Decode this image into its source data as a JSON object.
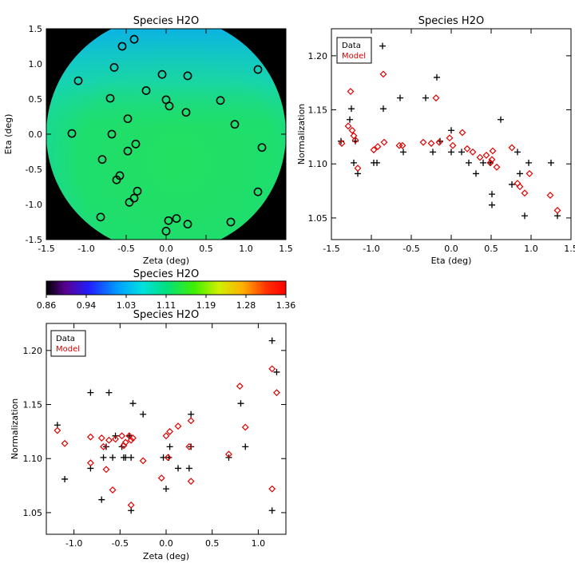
{
  "chart_data": [
    {
      "type": "heatmap",
      "title": "Species H2O",
      "xlabel": "Zeta (deg)",
      "ylabel": "Eta (deg)",
      "xlim": [
        -1.5,
        1.5
      ],
      "ylim": [
        -1.5,
        1.5
      ],
      "xticks": [
        "-1.5",
        "-1.0",
        "-0.5",
        "0.0",
        "0.5",
        "1.0",
        "1.5"
      ],
      "yticks": [
        "-1.5",
        "-1.0",
        "-0.5",
        "0.0",
        "0.5",
        "1.0",
        "1.5"
      ],
      "colors": {
        "outside": "#000000",
        "markers": "#000000"
      },
      "points": [
        {
          "x": -0.4,
          "y": 1.35
        },
        {
          "x": -0.55,
          "y": 1.25
        },
        {
          "x": 1.15,
          "y": 0.92
        },
        {
          "x": -0.65,
          "y": 0.95
        },
        {
          "x": -0.05,
          "y": 0.85
        },
        {
          "x": 0.27,
          "y": 0.83
        },
        {
          "x": -1.1,
          "y": 0.76
        },
        {
          "x": -0.25,
          "y": 0.62
        },
        {
          "x": -0.7,
          "y": 0.51
        },
        {
          "x": 0.0,
          "y": 0.49
        },
        {
          "x": 0.68,
          "y": 0.48
        },
        {
          "x": 0.04,
          "y": 0.4
        },
        {
          "x": 0.25,
          "y": 0.31
        },
        {
          "x": -0.48,
          "y": 0.22
        },
        {
          "x": 0.86,
          "y": 0.14
        },
        {
          "x": -1.18,
          "y": 0.01
        },
        {
          "x": -0.68,
          "y": 0.0
        },
        {
          "x": -0.38,
          "y": -0.14
        },
        {
          "x": 1.2,
          "y": -0.19
        },
        {
          "x": -0.48,
          "y": -0.24
        },
        {
          "x": -0.8,
          "y": -0.36
        },
        {
          "x": -0.58,
          "y": -0.59
        },
        {
          "x": -0.62,
          "y": -0.65
        },
        {
          "x": -0.36,
          "y": -0.81
        },
        {
          "x": 1.15,
          "y": -0.82
        },
        {
          "x": -0.4,
          "y": -0.91
        },
        {
          "x": -0.46,
          "y": -0.97
        },
        {
          "x": 0.13,
          "y": -1.2
        },
        {
          "x": 0.03,
          "y": -1.23
        },
        {
          "x": -0.82,
          "y": -1.18
        },
        {
          "x": 0.81,
          "y": -1.25
        },
        {
          "x": 0.27,
          "y": -1.28
        },
        {
          "x": 0.0,
          "y": -1.38
        }
      ]
    },
    {
      "type": "scatter",
      "title": "Species H2O",
      "xlabel": "Eta (deg)",
      "ylabel": "Normalization",
      "xlim": [
        -1.5,
        1.5
      ],
      "ylim": [
        1.03,
        1.225
      ],
      "xticks": [
        "-1.5",
        "-1.0",
        "-0.5",
        "0.0",
        "0.5",
        "1.0",
        "1.5"
      ],
      "yticks": [
        "1.05",
        "1.10",
        "1.15",
        "1.20"
      ],
      "legend": {
        "position": "top-left",
        "entries": [
          "Data",
          "Model"
        ]
      },
      "series": [
        {
          "name": "Data",
          "marker": "plus",
          "color": "#000000",
          "points": [
            [
              -1.38,
              1.121
            ],
            [
              -1.27,
              1.141
            ],
            [
              -1.25,
              1.151
            ],
            [
              -1.22,
              1.101
            ],
            [
              -1.2,
              1.121
            ],
            [
              -1.17,
              1.091
            ],
            [
              -0.86,
              1.209
            ],
            [
              -0.85,
              1.151
            ],
            [
              -0.97,
              1.101
            ],
            [
              -0.93,
              1.101
            ],
            [
              -0.64,
              1.161
            ],
            [
              -0.6,
              1.111
            ],
            [
              -0.32,
              1.161
            ],
            [
              -0.23,
              1.111
            ],
            [
              -0.18,
              1.18
            ],
            [
              -0.14,
              1.121
            ],
            [
              0.0,
              1.131
            ],
            [
              0.0,
              1.111
            ],
            [
              0.13,
              1.111
            ],
            [
              0.22,
              1.101
            ],
            [
              0.31,
              1.091
            ],
            [
              0.4,
              1.101
            ],
            [
              0.49,
              1.101
            ],
            [
              0.51,
              1.072
            ],
            [
              0.51,
              1.062
            ],
            [
              0.62,
              1.141
            ],
            [
              0.76,
              1.081
            ],
            [
              0.83,
              1.111
            ],
            [
              0.86,
              1.091
            ],
            [
              0.92,
              1.052
            ],
            [
              0.97,
              1.101
            ],
            [
              1.25,
              1.101
            ],
            [
              1.33,
              1.052
            ]
          ]
        },
        {
          "name": "Model",
          "marker": "diamond",
          "color": "#e00000",
          "points": [
            [
              -1.37,
              1.119
            ],
            [
              -1.29,
              1.135
            ],
            [
              -1.26,
              1.167
            ],
            [
              -1.24,
              1.131
            ],
            [
              -1.22,
              1.126
            ],
            [
              -1.2,
              1.122
            ],
            [
              -1.17,
              1.096
            ],
            [
              -0.85,
              1.183
            ],
            [
              -0.84,
              1.12
            ],
            [
              -0.97,
              1.113
            ],
            [
              -0.92,
              1.116
            ],
            [
              -0.65,
              1.117
            ],
            [
              -0.61,
              1.117
            ],
            [
              -0.35,
              1.12
            ],
            [
              -0.25,
              1.119
            ],
            [
              -0.19,
              1.161
            ],
            [
              -0.15,
              1.12
            ],
            [
              -0.02,
              1.124
            ],
            [
              0.02,
              1.117
            ],
            [
              0.14,
              1.129
            ],
            [
              0.2,
              1.114
            ],
            [
              0.27,
              1.111
            ],
            [
              0.36,
              1.106
            ],
            [
              0.44,
              1.108
            ],
            [
              0.49,
              1.101
            ],
            [
              0.51,
              1.104
            ],
            [
              0.57,
              1.097
            ],
            [
              0.76,
              1.115
            ],
            [
              0.83,
              1.082
            ],
            [
              0.86,
              1.079
            ],
            [
              0.92,
              1.073
            ],
            [
              0.98,
              1.091
            ],
            [
              1.24,
              1.071
            ],
            [
              1.33,
              1.057
            ],
            [
              0.52,
              1.112
            ]
          ]
        }
      ]
    },
    {
      "type": "colorbar",
      "title": "Species H2O",
      "ticks": [
        "0.86",
        "0.94",
        "1.03",
        "1.11",
        "1.19",
        "1.28",
        "1.36"
      ],
      "range": [
        0.86,
        1.36
      ]
    },
    {
      "type": "scatter",
      "title": "Species H2O",
      "xlabel": "Zeta (deg)",
      "ylabel": "Normalization",
      "xlim": [
        -1.3,
        1.3
      ],
      "ylim": [
        1.03,
        1.225
      ],
      "xticks": [
        "-1.0",
        "-0.5",
        "0.0",
        "0.5",
        "1.0"
      ],
      "yticks": [
        "1.05",
        "1.10",
        "1.15",
        "1.20"
      ],
      "legend": {
        "position": "top-left",
        "entries": [
          "Data",
          "Model"
        ]
      },
      "series": [
        {
          "name": "Data",
          "marker": "plus",
          "color": "#000000",
          "points": [
            [
              -1.18,
              1.131
            ],
            [
              -1.1,
              1.081
            ],
            [
              -0.82,
              1.161
            ],
            [
              -0.82,
              1.091
            ],
            [
              -0.7,
              1.062
            ],
            [
              -0.68,
              1.101
            ],
            [
              -0.65,
              1.111
            ],
            [
              -0.62,
              1.161
            ],
            [
              -0.58,
              1.101
            ],
            [
              -0.55,
              1.121
            ],
            [
              -0.48,
              1.111
            ],
            [
              -0.46,
              1.101
            ],
            [
              -0.44,
              1.101
            ],
            [
              -0.4,
              1.121
            ],
            [
              -0.38,
              1.101
            ],
            [
              -0.38,
              1.052
            ],
            [
              -0.36,
              1.151
            ],
            [
              -0.25,
              1.141
            ],
            [
              -0.03,
              1.101
            ],
            [
              0.0,
              1.072
            ],
            [
              0.03,
              1.101
            ],
            [
              0.04,
              1.111
            ],
            [
              0.13,
              1.091
            ],
            [
              0.25,
              1.091
            ],
            [
              0.27,
              1.141
            ],
            [
              0.27,
              1.111
            ],
            [
              0.68,
              1.101
            ],
            [
              0.81,
              1.151
            ],
            [
              0.86,
              1.111
            ],
            [
              1.15,
              1.209
            ],
            [
              1.15,
              1.052
            ],
            [
              1.2,
              1.18
            ]
          ]
        },
        {
          "name": "Model",
          "marker": "diamond",
          "color": "#e00000",
          "points": [
            [
              -1.18,
              1.126
            ],
            [
              -1.1,
              1.114
            ],
            [
              -0.82,
              1.12
            ],
            [
              -0.82,
              1.096
            ],
            [
              -0.7,
              1.119
            ],
            [
              -0.68,
              1.111
            ],
            [
              -0.65,
              1.09
            ],
            [
              -0.62,
              1.117
            ],
            [
              -0.58,
              1.071
            ],
            [
              -0.55,
              1.118
            ],
            [
              -0.48,
              1.121
            ],
            [
              -0.46,
              1.112
            ],
            [
              -0.44,
              1.115
            ],
            [
              -0.4,
              1.121
            ],
            [
              -0.38,
              1.057
            ],
            [
              -0.38,
              1.117
            ],
            [
              -0.36,
              1.119
            ],
            [
              -0.25,
              1.098
            ],
            [
              -0.05,
              1.082
            ],
            [
              0.0,
              1.121
            ],
            [
              0.02,
              1.101
            ],
            [
              0.04,
              1.125
            ],
            [
              0.13,
              1.13
            ],
            [
              0.25,
              1.111
            ],
            [
              0.27,
              1.135
            ],
            [
              0.27,
              1.079
            ],
            [
              0.68,
              1.104
            ],
            [
              0.8,
              1.167
            ],
            [
              0.86,
              1.129
            ],
            [
              1.15,
              1.183
            ],
            [
              1.15,
              1.072
            ],
            [
              1.2,
              1.161
            ]
          ]
        }
      ]
    }
  ]
}
